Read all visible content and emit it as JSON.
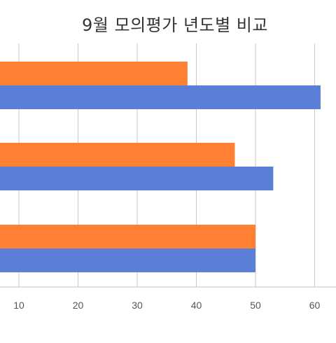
{
  "chart_data": {
    "type": "bar",
    "orientation": "horizontal",
    "title": "9월 모의평가 년도별 비교",
    "xlabel": "",
    "ylabel": "",
    "xlim": [
      0,
      60
    ],
    "x_ticks": [
      10,
      20,
      30,
      40,
      50,
      60
    ],
    "grid": true,
    "legend": "none",
    "groups": 3,
    "series": [
      {
        "color": "#FF7F33",
        "values": [
          38.5,
          46.5,
          50
        ]
      },
      {
        "color": "#5B7FD6",
        "values": [
          61,
          53,
          50
        ]
      }
    ]
  }
}
